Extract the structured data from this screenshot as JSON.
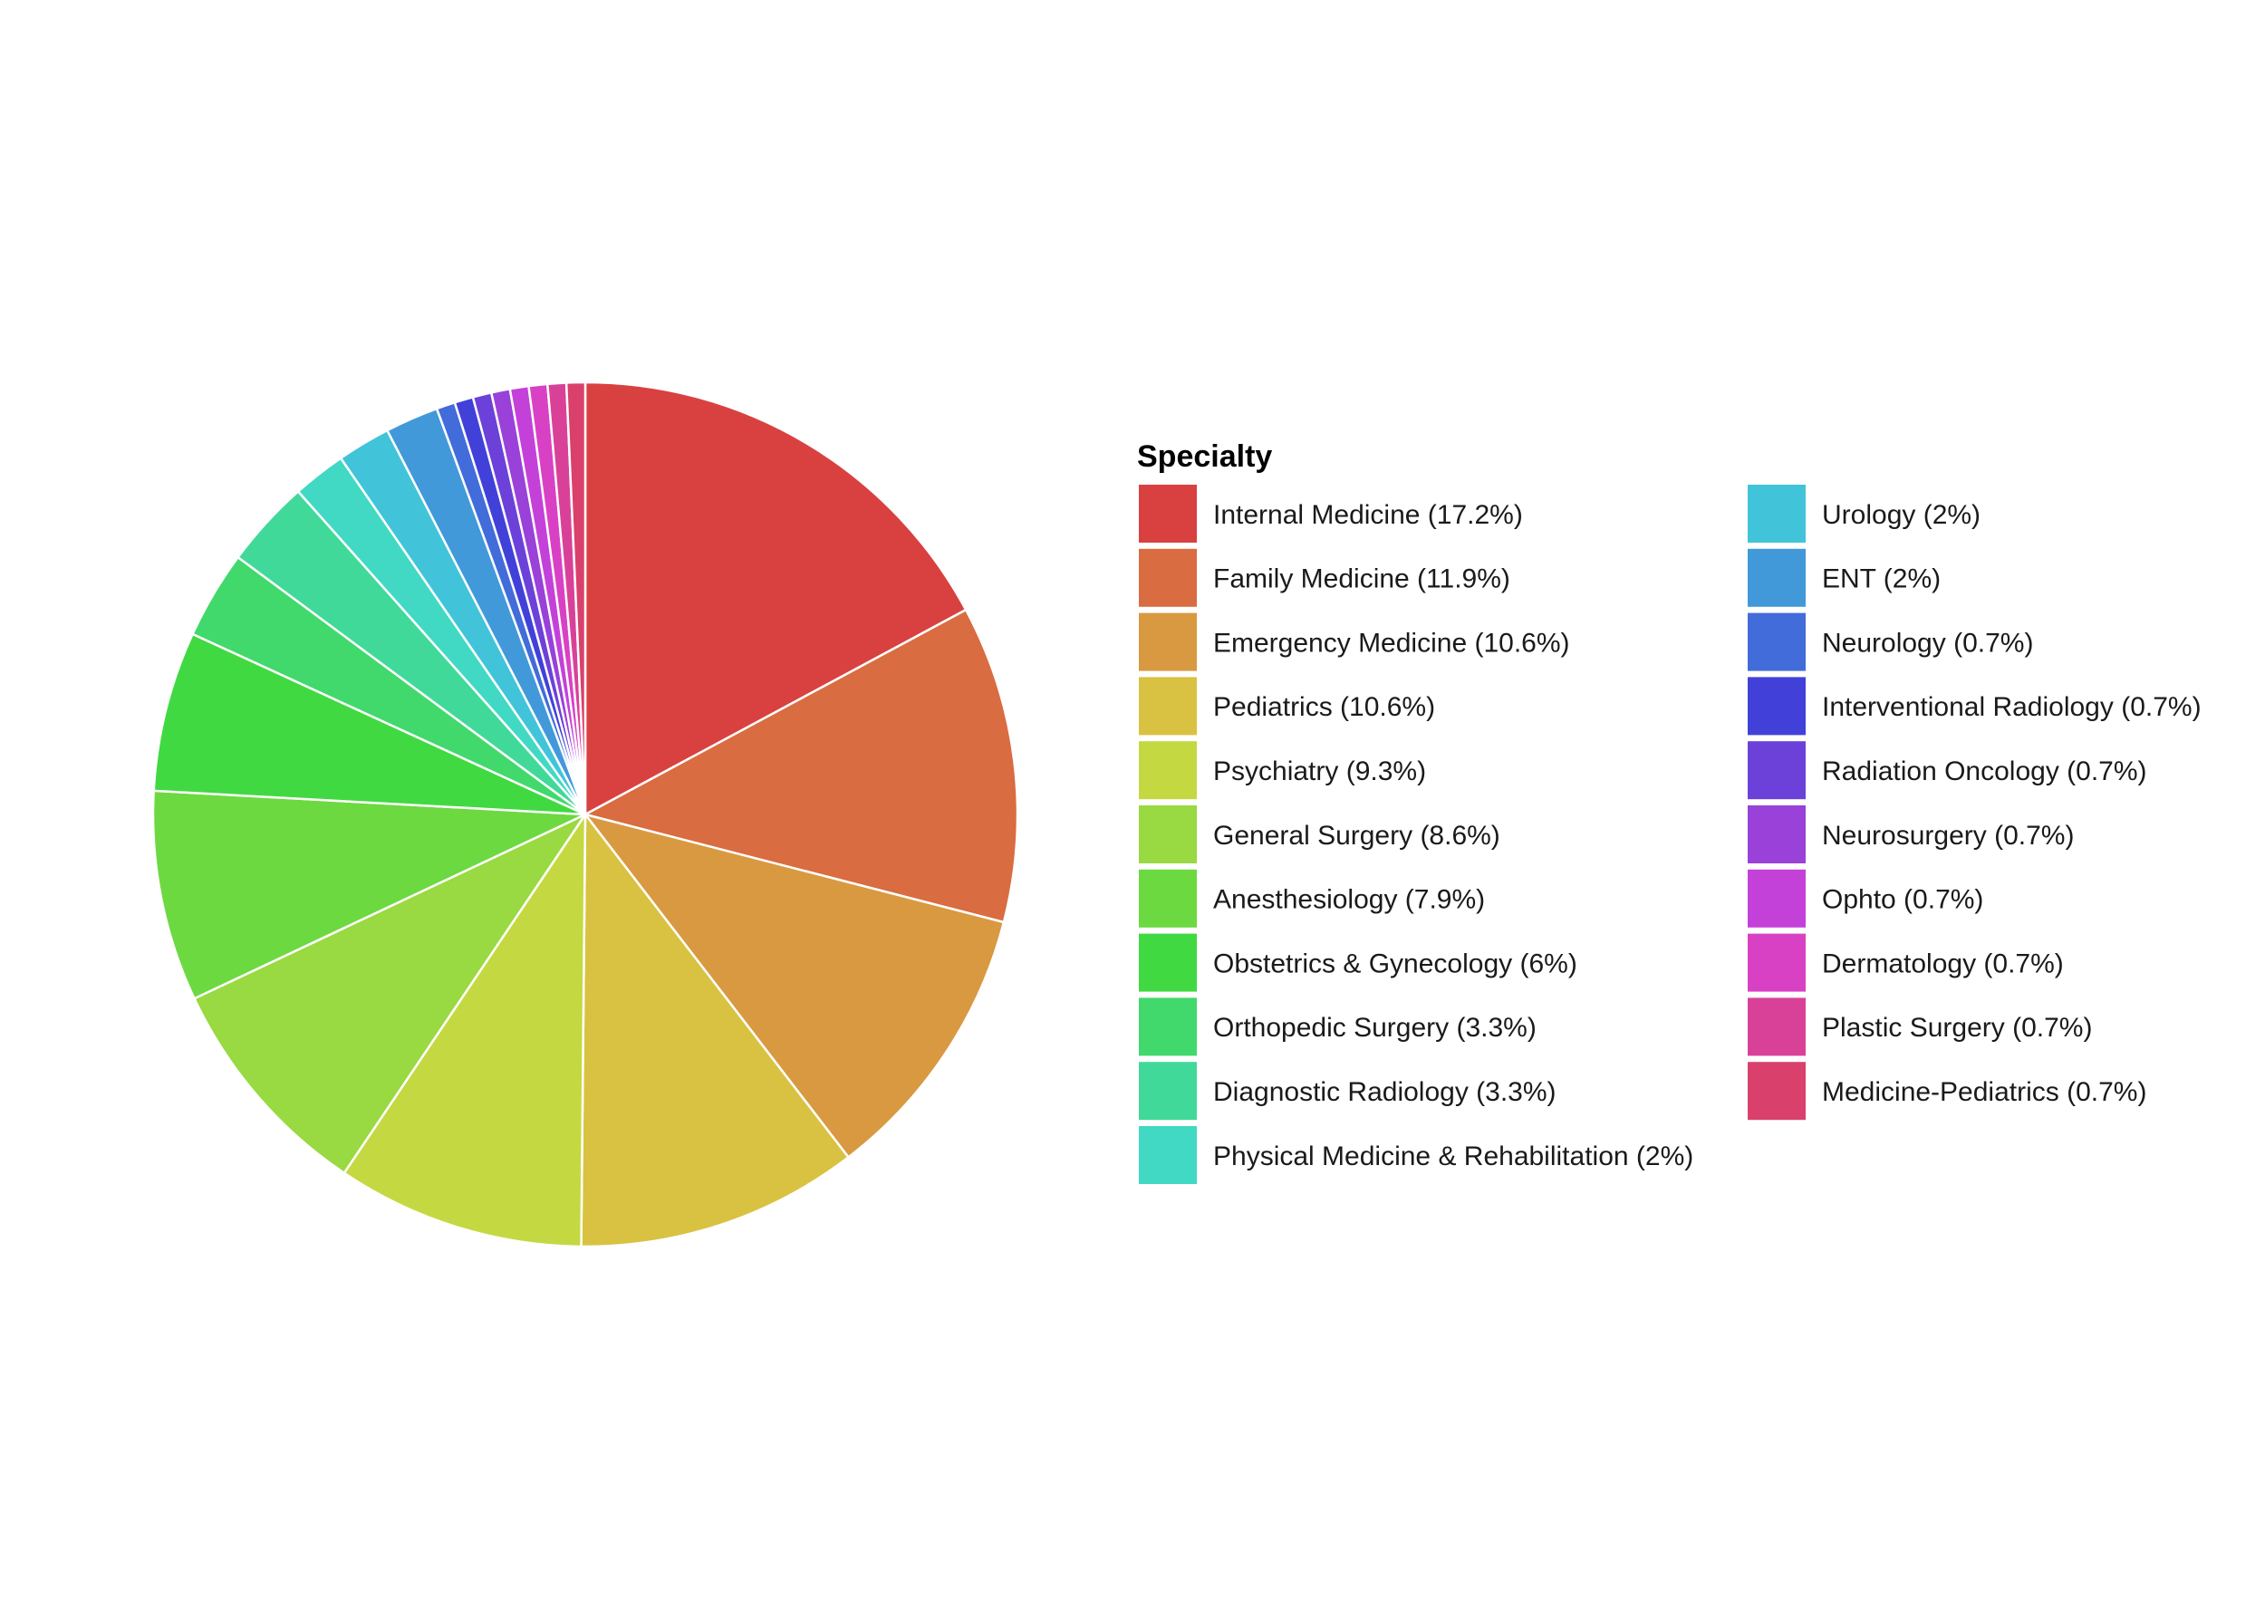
{
  "chart_data": {
    "type": "pie",
    "legend_title": "Specialty",
    "legend_position": "right",
    "start": "12 o'clock",
    "direction": "clockwise (slices listed in legend order)",
    "slices": [
      {
        "label": "Internal Medicine (17.2%)",
        "name": "Internal Medicine",
        "value": 17.2,
        "color": "#D94141"
      },
      {
        "label": "Family Medicine (11.9%)",
        "name": "Family Medicine",
        "value": 11.9,
        "color": "#D96C41"
      },
      {
        "label": "Emergency Medicine (10.6%)",
        "name": "Emergency Medicine",
        "value": 10.6,
        "color": "#D99941"
      },
      {
        "label": "Pediatrics (10.6%)",
        "name": "Pediatrics",
        "value": 10.6,
        "color": "#D9C241"
      },
      {
        "label": "Psychiatry (9.3%)",
        "name": "Psychiatry",
        "value": 9.3,
        "color": "#C4D941"
      },
      {
        "label": "General Surgery (8.6%)",
        "name": "General Surgery",
        "value": 8.6,
        "color": "#99D941"
      },
      {
        "label": "Anesthesiology (7.9%)",
        "name": "Anesthesiology",
        "value": 7.9,
        "color": "#6CD941"
      },
      {
        "label": "Obstetrics & Gynecology (6%)",
        "name": "Obstetrics & Gynecology",
        "value": 6.0,
        "color": "#41D941"
      },
      {
        "label": "Orthopedic Surgery (3.3%)",
        "name": "Orthopedic Surgery",
        "value": 3.3,
        "color": "#41D96C"
      },
      {
        "label": "Diagnostic Radiology (3.3%)",
        "name": "Diagnostic Radiology",
        "value": 3.3,
        "color": "#41D999"
      },
      {
        "label": "Physical Medicine & Rehabilitation (2%)",
        "name": "Physical Medicine & Rehabilitation",
        "value": 2.0,
        "color": "#41D9C4"
      },
      {
        "label": "Urology (2%)",
        "name": "Urology",
        "value": 2.0,
        "color": "#41C4D9"
      },
      {
        "label": "ENT (2%)",
        "name": "ENT",
        "value": 2.0,
        "color": "#4199D9"
      },
      {
        "label": "Neurology (0.7%)",
        "name": "Neurology",
        "value": 0.7,
        "color": "#416CD9"
      },
      {
        "label": "Interventional Radiology (0.7%)",
        "name": "Interventional Radiology",
        "value": 0.7,
        "color": "#4141D9"
      },
      {
        "label": "Radiation Oncology (0.7%)",
        "name": "Radiation Oncology",
        "value": 0.7,
        "color": "#6C41D9"
      },
      {
        "label": "Neurosurgery (0.7%)",
        "name": "Neurosurgery",
        "value": 0.7,
        "color": "#9941D9"
      },
      {
        "label": "Ophto (0.7%)",
        "name": "Ophto",
        "value": 0.7,
        "color": "#C441D9"
      },
      {
        "label": "Dermatology (0.7%)",
        "name": "Dermatology",
        "value": 0.7,
        "color": "#D941C4"
      },
      {
        "label": "Plastic Surgery (0.7%)",
        "name": "Plastic Surgery",
        "value": 0.7,
        "color": "#D94199"
      },
      {
        "label": "Medicine-Pediatrics (0.7%)",
        "name": "Medicine-Pediatrics",
        "value": 0.7,
        "color": "#D9416C"
      }
    ],
    "slice_border_color": "#ffffff",
    "background_color": "#ffffff"
  }
}
